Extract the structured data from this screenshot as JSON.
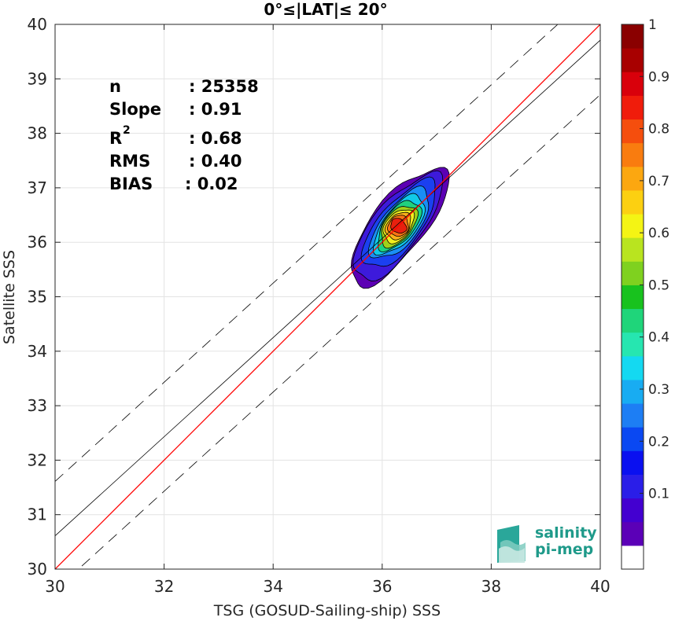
{
  "chart_data": {
    "type": "heatmap",
    "title": "0°≤|LAT|≤ 20°",
    "xlabel": "TSG (GOSUD-Sailing-ship) SSS",
    "ylabel": "Satellite SSS",
    "xlim": [
      30,
      40
    ],
    "ylim": [
      30,
      40
    ],
    "xticks": [
      "30",
      "32",
      "34",
      "36",
      "38",
      "40"
    ],
    "yticks": [
      "30",
      "31",
      "32",
      "33",
      "34",
      "35",
      "36",
      "37",
      "38",
      "39",
      "40"
    ],
    "grid": true,
    "stats": {
      "n": {
        "label": "n",
        "value": ": 25358"
      },
      "slope": {
        "label": "Slope",
        "value": ": 0.91"
      },
      "r2": {
        "label": "R",
        "sup": "2",
        "value": ": 0.68"
      },
      "rms": {
        "label": "RMS",
        "value": ": 0.40"
      },
      "bias": {
        "label": "BIAS",
        "value": ": 0.02"
      }
    },
    "lines": {
      "identity": {
        "slope": 1.0,
        "intercept": 0.0,
        "color": "#ff0000"
      },
      "fit": {
        "slope": 0.91,
        "intercept": 3.31,
        "color": "#000000"
      },
      "fit_upper": {
        "slope": 0.91,
        "intercept": 4.31,
        "style": "dashed"
      },
      "fit_lower": {
        "slope": 0.91,
        "intercept": 2.31,
        "style": "dashed"
      }
    },
    "density_center": {
      "x": 36.3,
      "y": 36.3,
      "peak": 1.0
    },
    "contour_levels": [
      {
        "level": 0.0,
        "color": "#5c00b4",
        "x_width": 1.05,
        "y_width": 0.32,
        "x_offset": 0.0
      },
      {
        "level": 0.05,
        "color": "#3d1adb",
        "x_width": 0.95,
        "y_width": 0.29,
        "x_offset": -0.02
      },
      {
        "level": 0.15,
        "color": "#1b40f0",
        "x_width": 0.78,
        "y_width": 0.24,
        "x_offset": 0.02
      },
      {
        "level": 0.3,
        "color": "#1a8ef5",
        "x_width": 0.62,
        "y_width": 0.2,
        "x_offset": 0.03
      },
      {
        "level": 0.4,
        "color": "#11c9e8",
        "x_width": 0.52,
        "y_width": 0.17,
        "x_offset": 0.02
      },
      {
        "level": 0.5,
        "color": "#1fd17e",
        "x_width": 0.43,
        "y_width": 0.15,
        "x_offset": 0.01
      },
      {
        "level": 0.6,
        "color": "#9fd11a",
        "x_width": 0.35,
        "y_width": 0.13,
        "x_offset": 0.0
      },
      {
        "level": 0.65,
        "color": "#f3ef1e",
        "x_width": 0.28,
        "y_width": 0.11,
        "x_offset": 0.0
      },
      {
        "level": 0.7,
        "color": "#fcb11a",
        "x_width": 0.22,
        "y_width": 0.09,
        "x_offset": 0.0
      },
      {
        "level": 0.8,
        "color": "#f97414",
        "x_width": 0.16,
        "y_width": 0.075,
        "x_offset": 0.0
      },
      {
        "level": 0.9,
        "color": "#e8200e",
        "x_width": 0.1,
        "y_width": 0.055,
        "x_offset": 0.0
      }
    ],
    "colorbar": {
      "labels": [
        "0.1",
        "0.2",
        "0.3",
        "0.4",
        "0.5",
        "0.6",
        "0.7",
        "0.8",
        "0.9",
        "1"
      ],
      "colors": [
        "#ffffff",
        "#5b00b7",
        "#4300d0",
        "#2a1ee8",
        "#0a10f0",
        "#0a48f2",
        "#1d7ef4",
        "#18acf2",
        "#14d9f1",
        "#26e6b0",
        "#1fd57a",
        "#18c21e",
        "#7fd11f",
        "#b9e41f",
        "#f4f414",
        "#fcd011",
        "#fca710",
        "#f97c0f",
        "#f54e0d",
        "#f01c0b",
        "#d9000b",
        "#a80000",
        "#8a0000"
      ]
    }
  },
  "logo": {
    "line1": "salinity",
    "line2": "pi-mep"
  }
}
